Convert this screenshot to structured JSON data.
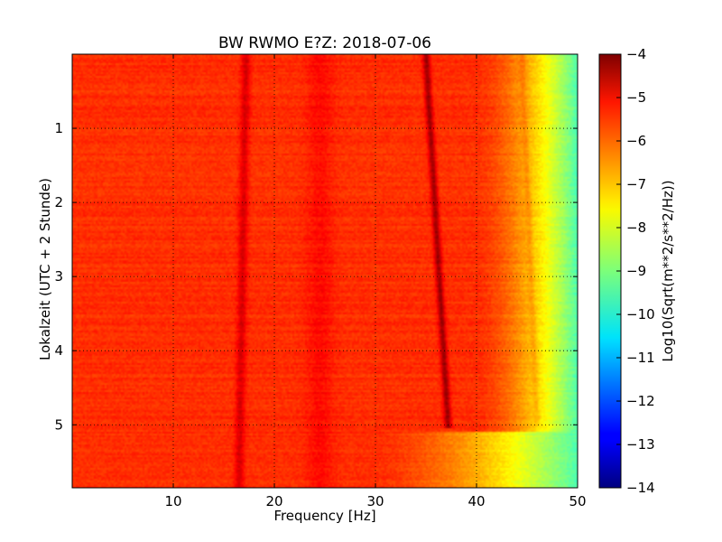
{
  "chart_data": {
    "type": "heatmap",
    "title": "BW RWMO E?Z: 2018-07-06",
    "xlabel": "Frequency [Hz]",
    "ylabel": "Lokalzeit (UTC + 2 Stunde)",
    "xlim": [
      0,
      50
    ],
    "ylim": [
      5.85,
      0
    ],
    "xticks": [
      10,
      20,
      30,
      40,
      50
    ],
    "yticks": [
      1,
      2,
      3,
      4,
      5
    ],
    "grid": true,
    "colormap": "jet",
    "colorbar": {
      "label": "Log10(Sqrt(m**2/s**2/Hz))",
      "range": [
        -14,
        -4
      ],
      "ticks": [
        -4,
        -5,
        -6,
        -7,
        -8,
        -9,
        -10,
        -11,
        -12,
        -13,
        -14
      ]
    },
    "background_level": -5.7,
    "features": [
      {
        "name": "rolloff",
        "description": "amplitude decreases above ~40 Hz, reaching about -9.5 at 50 Hz",
        "start_hz": 40,
        "end_hz": 50,
        "end_level": -9.5
      },
      {
        "name": "line-17hz",
        "description": "persistent dark vertical band",
        "x_start": 17.2,
        "x_end": 16.5,
        "level": -4.8
      },
      {
        "name": "drifting-line",
        "description": "drifting dark line ending near 5.1 h",
        "points": [
          [
            35.0,
            0.0
          ],
          [
            37.2,
            5.05
          ]
        ],
        "level": -4.3
      },
      {
        "name": "faint-drift",
        "description": "faint secondary drift line",
        "points": [
          [
            44.5,
            0.0
          ],
          [
            46.0,
            5.0
          ]
        ],
        "level": -6.4
      },
      {
        "name": "band-24hz",
        "description": "dark band",
        "x": 24.5,
        "level": -5.1
      },
      {
        "name": "late-section",
        "description": "spectrum shifts after ~5.1 h; roll-off moves lower",
        "y_start": 5.1,
        "rolloff_start_hz": 30
      }
    ]
  }
}
